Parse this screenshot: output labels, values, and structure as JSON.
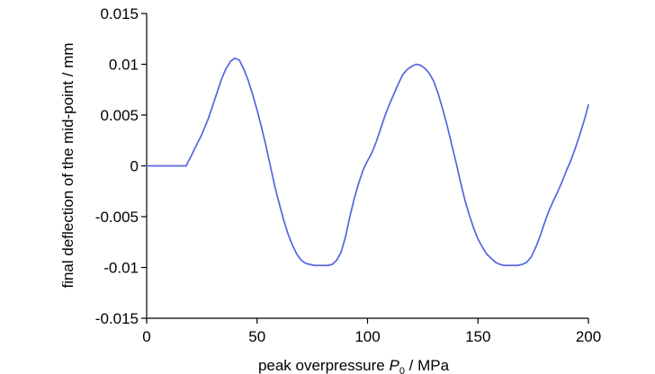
{
  "chart_data": {
    "type": "line",
    "title": "",
    "xlabel": {
      "prefix": "peak overpressure ",
      "symbol": "P",
      "subscript": "0",
      "suffix": " / MPa"
    },
    "ylabel": "final deflection of the mid-point / mm",
    "xlim": [
      0,
      200
    ],
    "ylim": [
      -0.015,
      0.015
    ],
    "x_ticks": [
      0,
      50,
      100,
      150,
      200
    ],
    "x_tick_labels": [
      "0",
      "50",
      "100",
      "150",
      "200"
    ],
    "y_ticks": [
      0.015,
      0.01,
      0.005,
      0,
      -0.005,
      -0.01,
      -0.015
    ],
    "y_tick_labels": [
      "0.015",
      "0.01",
      "0.005",
      "0",
      "-0.005",
      "-0.01",
      "-0.015"
    ],
    "grid": false,
    "legend": "none",
    "series": [
      {
        "color": "#5566dd",
        "x": [
          0,
          5,
          10,
          15,
          18,
          18.5,
          20,
          22,
          25,
          28,
          30,
          32,
          34,
          36,
          38,
          40,
          42,
          44,
          46,
          48,
          50,
          52,
          54,
          56,
          58,
          60,
          62,
          64,
          66,
          68,
          70,
          72,
          74,
          76,
          78,
          80,
          82,
          84,
          86,
          88,
          90,
          92,
          94,
          96,
          98,
          100,
          102,
          104,
          106,
          108,
          110,
          112,
          114,
          116,
          118,
          120,
          122,
          124,
          126,
          128,
          130,
          132,
          134,
          136,
          138,
          140,
          142,
          144,
          146,
          148,
          150,
          152,
          154,
          156,
          158,
          160,
          162,
          164,
          166,
          168,
          170,
          172,
          174,
          176,
          178,
          180,
          182,
          184,
          186,
          188,
          190,
          192,
          194,
          196,
          198,
          200
        ],
        "y": [
          0.0,
          0.0,
          0.0,
          0.0,
          0.0,
          0.0003,
          0.0009,
          0.0018,
          0.0031,
          0.0047,
          0.006,
          0.0073,
          0.0086,
          0.0096,
          0.0103,
          0.0106,
          0.0104,
          0.0095,
          0.0084,
          0.007,
          0.0055,
          0.0038,
          0.002,
          0.0,
          -0.002,
          -0.0037,
          -0.0053,
          -0.0067,
          -0.0078,
          -0.0087,
          -0.0093,
          -0.0096,
          -0.0097,
          -0.0098,
          -0.0098,
          -0.0098,
          -0.0098,
          -0.0097,
          -0.0093,
          -0.0085,
          -0.007,
          -0.005,
          -0.0032,
          -0.0017,
          -0.0004,
          0.0005,
          0.0013,
          0.0024,
          0.0037,
          0.005,
          0.0061,
          0.0071,
          0.0081,
          0.009,
          0.0095,
          0.0098,
          0.01,
          0.0099,
          0.0096,
          0.0091,
          0.0083,
          0.0071,
          0.0056,
          0.004,
          0.0022,
          0.0004,
          -0.0015,
          -0.0033,
          -0.0048,
          -0.0061,
          -0.0072,
          -0.008,
          -0.0087,
          -0.0091,
          -0.0095,
          -0.0097,
          -0.0098,
          -0.0098,
          -0.0098,
          -0.0098,
          -0.0097,
          -0.0095,
          -0.009,
          -0.0081,
          -0.007,
          -0.0057,
          -0.0045,
          -0.0035,
          -0.0026,
          -0.0016,
          -0.0005,
          0.0005,
          0.0017,
          0.003,
          0.0044,
          0.006
        ]
      }
    ]
  }
}
